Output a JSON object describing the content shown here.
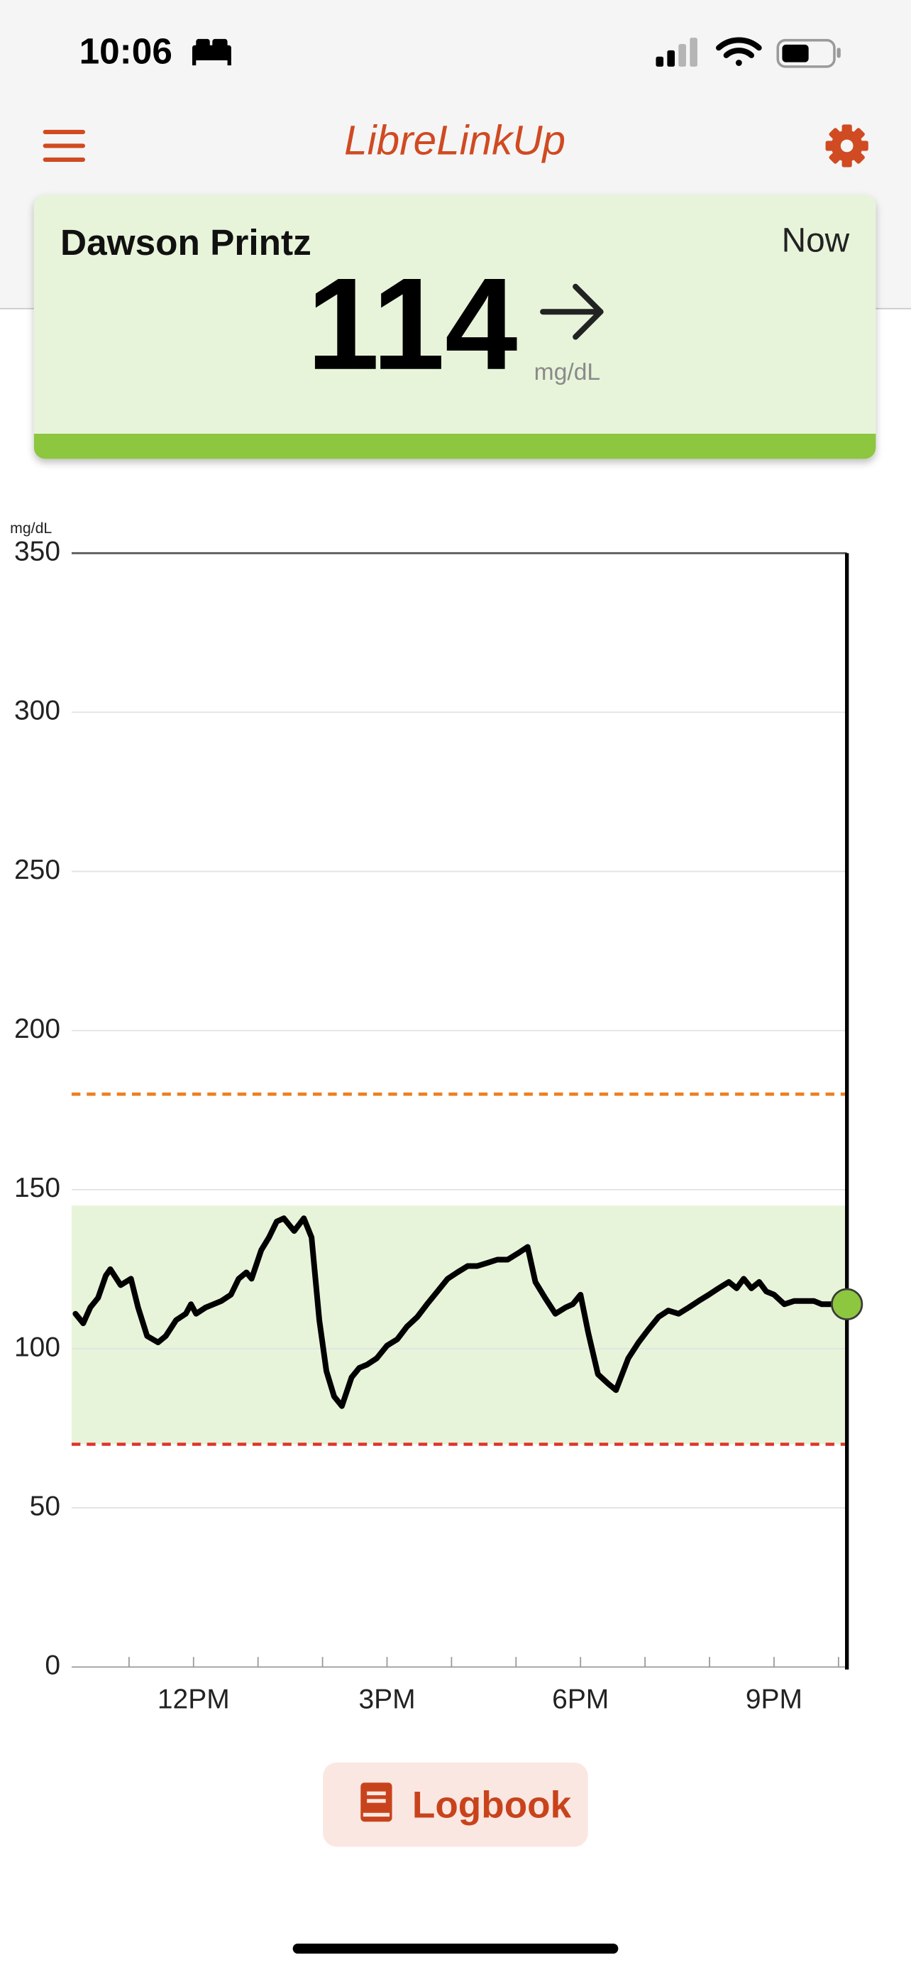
{
  "status_bar": {
    "time": "10:06"
  },
  "header": {
    "title": "LibreLinkUp"
  },
  "patient_card": {
    "name": "Dawson Printz",
    "time": "Now",
    "glucose": 114,
    "unit": "mg/dL"
  },
  "chart_data": {
    "type": "line",
    "y_axis_label": "mg/dL",
    "x": [
      10.17,
      10.29,
      10.4,
      10.52,
      10.64,
      10.71,
      10.87,
      11.03,
      11.14,
      11.28,
      11.45,
      11.57,
      11.73,
      11.88,
      11.96,
      12.04,
      12.19,
      12.31,
      12.43,
      12.58,
      12.7,
      12.82,
      12.9,
      13.05,
      13.17,
      13.29,
      13.4,
      13.56,
      13.71,
      13.83,
      13.95,
      14.06,
      14.18,
      14.3,
      14.45,
      14.57,
      14.69,
      14.84,
      15.0,
      15.16,
      15.31,
      15.47,
      15.62,
      15.78,
      15.94,
      16.09,
      16.25,
      16.4,
      16.56,
      16.71,
      16.87,
      17.03,
      17.18,
      17.3,
      17.45,
      17.61,
      17.77,
      17.88,
      18.0,
      18.12,
      18.27,
      18.43,
      18.55,
      18.74,
      18.9,
      19.05,
      19.21,
      19.36,
      19.52,
      19.68,
      19.83,
      19.99,
      20.14,
      20.3,
      20.42,
      20.53,
      20.65,
      20.77,
      20.88,
      21.0,
      21.16,
      21.31,
      21.47,
      21.62,
      21.74,
      21.86,
      22.13
    ],
    "values": [
      111,
      108,
      113,
      116,
      123,
      125,
      120,
      122,
      113,
      104,
      102,
      104,
      109,
      111,
      114,
      111,
      113,
      114,
      115,
      117,
      122,
      124,
      122,
      131,
      135,
      140,
      141,
      137,
      141,
      135,
      109,
      93,
      85,
      82,
      91,
      94,
      95,
      97,
      101,
      103,
      107,
      110,
      114,
      118,
      122,
      124,
      126,
      126,
      127,
      128,
      128,
      130,
      132,
      121,
      116,
      111,
      113,
      114,
      117,
      105,
      92,
      89,
      87,
      97,
      102,
      106,
      110,
      112,
      111,
      113,
      115,
      117,
      119,
      121,
      119,
      122,
      119,
      121,
      118,
      117,
      114,
      115,
      115,
      115,
      114,
      114,
      114
    ],
    "color": "#000000",
    "marker_color": "#8dc63f",
    "xlim": [
      10.11,
      22.13
    ],
    "xticks": [
      {
        "value": 12,
        "label": "12PM"
      },
      {
        "value": 15,
        "label": "3PM"
      },
      {
        "value": 18,
        "label": "6PM"
      },
      {
        "value": 21,
        "label": "9PM"
      }
    ],
    "xminorticks": [
      11,
      13,
      14,
      16,
      17,
      19,
      20,
      22
    ],
    "ylim": [
      0,
      350
    ],
    "yticks": [
      0,
      50,
      100,
      150,
      200,
      250,
      300,
      350
    ],
    "grid": true,
    "target_range": [
      70,
      145
    ],
    "target_color": "#e7f4d9",
    "high_threshold": 180,
    "high_color": "#ee7d1f",
    "low_threshold": 70,
    "low_color": "#e0322a"
  },
  "logbook_button": {
    "label": "Logbook"
  }
}
